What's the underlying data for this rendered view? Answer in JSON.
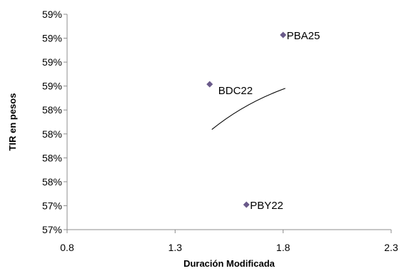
{
  "chart_data": {
    "type": "scatter",
    "xlabel": "Duración Modificada",
    "ylabel": "TIR en pesos",
    "xlim": [
      0.8,
      2.3
    ],
    "x_ticks": [
      "0.8",
      "1.3",
      "1.8",
      "2.3"
    ],
    "y_ticks": [
      "57%",
      "57%",
      "58%",
      "58%",
      "58%",
      "58%",
      "59%",
      "59%",
      "59%",
      "59%"
    ],
    "ylim_fraction": [
      0,
      1
    ],
    "grid": false,
    "legend": "none",
    "marker_color": "#6a5a8a",
    "points": [
      {
        "label": "PBA25",
        "x": 1.8,
        "y_fraction": 0.904
      },
      {
        "label": "BDC22",
        "x": 1.46,
        "y_fraction": 0.675
      },
      {
        "label": "PBY22",
        "x": 1.63,
        "y_fraction": 0.116
      }
    ],
    "trendline": {
      "x_start": 1.47,
      "x_end": 1.81,
      "y_start_fraction": 0.465,
      "y_end_fraction": 0.656
    }
  }
}
